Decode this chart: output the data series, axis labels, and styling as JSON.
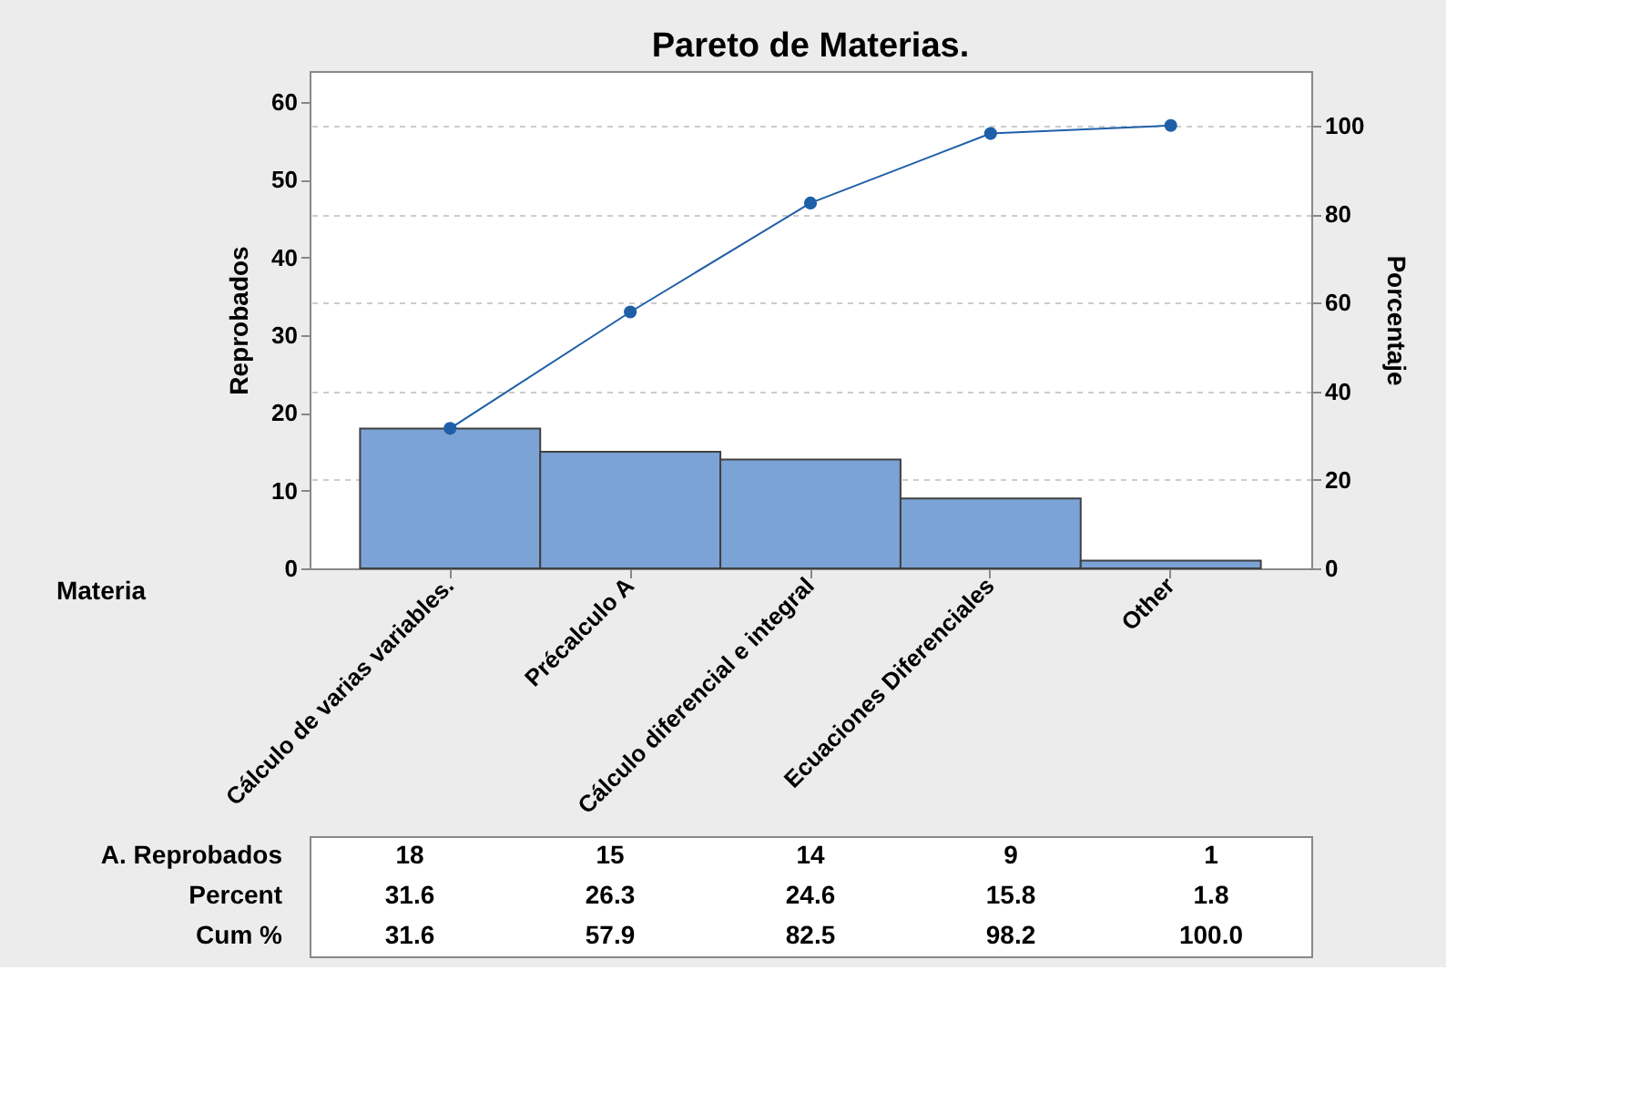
{
  "chart_data": {
    "type": "bar",
    "title": "Pareto de Materias.",
    "xlabel": "Materia",
    "ylabel": "Reprobados",
    "y2label": "Porcentaje",
    "categories": [
      "Cálculo de varias variables.",
      "Précalculo A",
      "Cálculo diferencial e integral",
      "Ecuaciones Diferenciales",
      "Other"
    ],
    "series": [
      {
        "color": "#7ba3d6",
        "values": [
          18,
          15,
          14,
          9,
          1
        ],
        "value_labels": [
          "18",
          "15",
          "14",
          "9",
          "1"
        ]
      },
      {
        "type": "line",
        "axis": "y2",
        "color": "#1f5fa8",
        "values": [
          31.6,
          57.9,
          82.5,
          98.2,
          100.0
        ],
        "value_labels": [
          "31.6",
          "57.9",
          "82.5",
          "98.2",
          "100.0"
        ]
      }
    ],
    "annotations": [
      "A. Reprobados",
      "Percent",
      "Cum %",
      "31.6",
      "26.3",
      "24.6",
      "15.8",
      "1.8"
    ],
    "ylim": [
      0,
      64
    ],
    "yticks": [
      0,
      10,
      20,
      30,
      40,
      50,
      60
    ],
    "y2lim": [
      0,
      112.3
    ],
    "y2ticks": [
      0,
      20,
      40,
      60,
      80,
      100
    ],
    "grid": true,
    "marker": "circle",
    "line_style": "solid"
  }
}
